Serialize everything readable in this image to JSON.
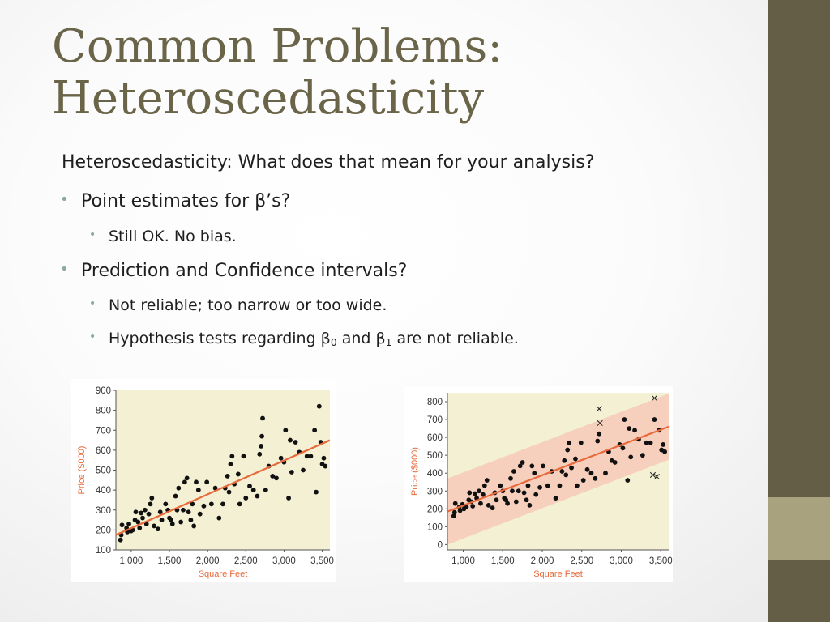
{
  "slide": {
    "title_line1": "Common Problems:",
    "title_line2": "Heteroscedasticity",
    "intro": "Heteroscedasticity: What does that mean for your analysis?",
    "bullet1": "Point estimates for β’s?",
    "bullet1_sub1": "Still OK.  No bias.",
    "bullet2": "Prediction and Confidence intervals?",
    "bullet2_sub1": "Not reliable; too narrow or too wide.",
    "bullet2_sub2_a": "Hypothesis tests regarding β",
    "bullet2_sub2_sub0": "0",
    "bullet2_sub2_b": " and β",
    "bullet2_sub2_sub1": "1",
    "bullet2_sub2_c": " are not reliable."
  },
  "colors": {
    "accent_bar": "#645e47",
    "accent_block": "#a8a27e",
    "title": "#6a6448",
    "bullet_dot": "#8ba8a2",
    "plot_bg": "#f3f0d3",
    "band": "#f6c9b8",
    "fit_line": "#e86a3c",
    "axis_label": "#e86a3c"
  },
  "chart_data": [
    {
      "type": "scatter",
      "title": "",
      "xlabel": "Square Feet",
      "ylabel": "Price ($000)",
      "xlim": [
        800,
        3600
      ],
      "ylim": [
        100,
        900
      ],
      "xticks": [
        1000,
        1500,
        2000,
        2500,
        3000,
        3500
      ],
      "xtick_labels": [
        "1,000",
        "1,500",
        "2,000",
        "2,500",
        "3,000",
        "3,500"
      ],
      "yticks": [
        100,
        200,
        300,
        400,
        500,
        600,
        700,
        800,
        900
      ],
      "ytick_labels": [
        "100",
        "200",
        "300",
        "400",
        "500",
        "600",
        "700",
        "800",
        "900"
      ],
      "grid": false,
      "fit_line": {
        "x": [
          800,
          3600
        ],
        "y": [
          175,
          650
        ]
      },
      "points": [
        [
          860,
          150
        ],
        [
          870,
          175
        ],
        [
          880,
          225
        ],
        [
          940,
          210
        ],
        [
          950,
          190
        ],
        [
          970,
          230
        ],
        [
          1000,
          195
        ],
        [
          1020,
          200
        ],
        [
          1050,
          250
        ],
        [
          1060,
          290
        ],
        [
          1090,
          240
        ],
        [
          1110,
          210
        ],
        [
          1130,
          285
        ],
        [
          1150,
          260
        ],
        [
          1180,
          300
        ],
        [
          1200,
          230
        ],
        [
          1230,
          280
        ],
        [
          1250,
          330
        ],
        [
          1270,
          360
        ],
        [
          1300,
          220
        ],
        [
          1350,
          205
        ],
        [
          1380,
          290
        ],
        [
          1400,
          250
        ],
        [
          1450,
          330
        ],
        [
          1480,
          300
        ],
        [
          1500,
          260
        ],
        [
          1520,
          250
        ],
        [
          1540,
          230
        ],
        [
          1580,
          370
        ],
        [
          1600,
          300
        ],
        [
          1620,
          410
        ],
        [
          1650,
          240
        ],
        [
          1680,
          300
        ],
        [
          1700,
          440
        ],
        [
          1730,
          460
        ],
        [
          1750,
          290
        ],
        [
          1780,
          250
        ],
        [
          1800,
          330
        ],
        [
          1820,
          220
        ],
        [
          1850,
          440
        ],
        [
          1880,
          400
        ],
        [
          1900,
          280
        ],
        [
          1950,
          320
        ],
        [
          1990,
          440
        ],
        [
          2050,
          330
        ],
        [
          2100,
          410
        ],
        [
          2150,
          260
        ],
        [
          2200,
          330
        ],
        [
          2230,
          410
        ],
        [
          2260,
          470
        ],
        [
          2280,
          390
        ],
        [
          2300,
          530
        ],
        [
          2320,
          570
        ],
        [
          2350,
          430
        ],
        [
          2400,
          480
        ],
        [
          2420,
          330
        ],
        [
          2470,
          570
        ],
        [
          2500,
          360
        ],
        [
          2550,
          420
        ],
        [
          2600,
          400
        ],
        [
          2650,
          370
        ],
        [
          2680,
          580
        ],
        [
          2700,
          620
        ],
        [
          2710,
          670
        ],
        [
          2720,
          760
        ],
        [
          2760,
          400
        ],
        [
          2800,
          520
        ],
        [
          2850,
          470
        ],
        [
          2900,
          460
        ],
        [
          2960,
          560
        ],
        [
          3000,
          540
        ],
        [
          3020,
          700
        ],
        [
          3060,
          360
        ],
        [
          3080,
          650
        ],
        [
          3100,
          490
        ],
        [
          3150,
          640
        ],
        [
          3200,
          590
        ],
        [
          3250,
          500
        ],
        [
          3300,
          570
        ],
        [
          3350,
          570
        ],
        [
          3400,
          700
        ],
        [
          3420,
          390
        ],
        [
          3460,
          820
        ],
        [
          3480,
          640
        ],
        [
          3500,
          530
        ],
        [
          3520,
          560
        ],
        [
          3540,
          520
        ]
      ]
    },
    {
      "type": "scatter",
      "title": "",
      "xlabel": "Square Feet",
      "ylabel": "Price ($000)",
      "xlim": [
        800,
        3600
      ],
      "ylim": [
        -30,
        850
      ],
      "xticks": [
        1000,
        1500,
        2000,
        2500,
        3000,
        3500
      ],
      "xtick_labels": [
        "1,000",
        "1,500",
        "2,000",
        "2,500",
        "3,000",
        "3,500"
      ],
      "yticks": [
        0,
        100,
        200,
        300,
        400,
        500,
        600,
        700,
        800
      ],
      "ytick_labels": [
        "0",
        "100",
        "200",
        "300",
        "400",
        "500",
        "600",
        "700",
        "800"
      ],
      "grid": false,
      "fit_line": {
        "x": [
          800,
          3600
        ],
        "y": [
          185,
          660
        ]
      },
      "band_half_width": 185,
      "points": [
        [
          880,
          160
        ],
        [
          890,
          180
        ],
        [
          900,
          230
        ],
        [
          950,
          210
        ],
        [
          960,
          190
        ],
        [
          990,
          225
        ],
        [
          1010,
          200
        ],
        [
          1040,
          210
        ],
        [
          1070,
          250
        ],
        [
          1080,
          290
        ],
        [
          1100,
          240
        ],
        [
          1120,
          215
        ],
        [
          1150,
          285
        ],
        [
          1170,
          260
        ],
        [
          1200,
          300
        ],
        [
          1220,
          230
        ],
        [
          1250,
          280
        ],
        [
          1270,
          330
        ],
        [
          1300,
          360
        ],
        [
          1320,
          220
        ],
        [
          1370,
          205
        ],
        [
          1400,
          290
        ],
        [
          1420,
          250
        ],
        [
          1470,
          330
        ],
        [
          1500,
          300
        ],
        [
          1520,
          260
        ],
        [
          1540,
          250
        ],
        [
          1560,
          230
        ],
        [
          1600,
          370
        ],
        [
          1620,
          300
        ],
        [
          1640,
          410
        ],
        [
          1670,
          240
        ],
        [
          1700,
          300
        ],
        [
          1720,
          440
        ],
        [
          1750,
          460
        ],
        [
          1770,
          290
        ],
        [
          1800,
          250
        ],
        [
          1820,
          330
        ],
        [
          1840,
          220
        ],
        [
          1870,
          440
        ],
        [
          1900,
          400
        ],
        [
          1920,
          280
        ],
        [
          1970,
          320
        ],
        [
          2010,
          440
        ],
        [
          2070,
          330
        ],
        [
          2120,
          410
        ],
        [
          2170,
          260
        ],
        [
          2220,
          330
        ],
        [
          2250,
          410
        ],
        [
          2280,
          470
        ],
        [
          2300,
          390
        ],
        [
          2320,
          530
        ],
        [
          2340,
          570
        ],
        [
          2370,
          430
        ],
        [
          2420,
          480
        ],
        [
          2440,
          330
        ],
        [
          2490,
          570
        ],
        [
          2520,
          360
        ],
        [
          2570,
          420
        ],
        [
          2620,
          400
        ],
        [
          2670,
          370
        ],
        [
          2700,
          580
        ],
        [
          2720,
          620
        ],
        [
          2800,
          400
        ],
        [
          2840,
          520
        ],
        [
          2880,
          470
        ],
        [
          2920,
          460
        ],
        [
          2980,
          560
        ],
        [
          3020,
          540
        ],
        [
          3040,
          700
        ],
        [
          3080,
          360
        ],
        [
          3100,
          650
        ],
        [
          3120,
          490
        ],
        [
          3170,
          640
        ],
        [
          3220,
          590
        ],
        [
          3270,
          500
        ],
        [
          3320,
          570
        ],
        [
          3370,
          570
        ],
        [
          3420,
          700
        ],
        [
          3480,
          640
        ],
        [
          3510,
          530
        ],
        [
          3530,
          560
        ],
        [
          3550,
          520
        ]
      ],
      "outliers": [
        [
          2720,
          760
        ],
        [
          2730,
          680
        ],
        [
          3420,
          820
        ],
        [
          3400,
          390
        ],
        [
          3450,
          380
        ]
      ]
    }
  ]
}
